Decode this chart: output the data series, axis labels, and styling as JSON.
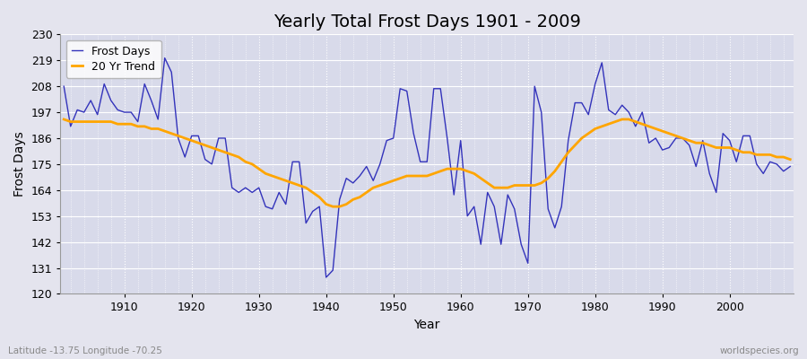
{
  "title": "Yearly Total Frost Days 1901 - 2009",
  "xlabel": "Year",
  "ylabel": "Frost Days",
  "subtitle": "Latitude -13.75 Longitude -70.25",
  "watermark": "worldspecies.org",
  "years": [
    1901,
    1902,
    1903,
    1904,
    1905,
    1906,
    1907,
    1908,
    1909,
    1910,
    1911,
    1912,
    1913,
    1914,
    1915,
    1916,
    1917,
    1918,
    1919,
    1920,
    1921,
    1922,
    1923,
    1924,
    1925,
    1926,
    1927,
    1928,
    1929,
    1930,
    1931,
    1932,
    1933,
    1934,
    1935,
    1936,
    1937,
    1938,
    1939,
    1940,
    1941,
    1942,
    1943,
    1944,
    1945,
    1946,
    1947,
    1948,
    1949,
    1950,
    1951,
    1952,
    1953,
    1954,
    1955,
    1956,
    1957,
    1958,
    1959,
    1960,
    1961,
    1962,
    1963,
    1964,
    1965,
    1966,
    1967,
    1968,
    1969,
    1970,
    1971,
    1972,
    1973,
    1974,
    1975,
    1976,
    1977,
    1978,
    1979,
    1980,
    1981,
    1982,
    1983,
    1984,
    1985,
    1986,
    1987,
    1988,
    1989,
    1990,
    1991,
    1992,
    1993,
    1994,
    1995,
    1996,
    1997,
    1998,
    1999,
    2000,
    2001,
    2002,
    2003,
    2004,
    2005,
    2006,
    2007,
    2008,
    2009
  ],
  "frost_days": [
    208,
    191,
    198,
    197,
    202,
    196,
    209,
    202,
    198,
    197,
    197,
    193,
    209,
    202,
    194,
    220,
    214,
    186,
    178,
    187,
    187,
    177,
    175,
    186,
    186,
    165,
    163,
    165,
    163,
    165,
    157,
    156,
    163,
    158,
    176,
    176,
    150,
    155,
    157,
    127,
    130,
    160,
    169,
    167,
    170,
    174,
    168,
    175,
    185,
    186,
    207,
    206,
    188,
    176,
    176,
    207,
    207,
    186,
    162,
    185,
    153,
    157,
    141,
    163,
    157,
    141,
    162,
    156,
    141,
    133,
    208,
    197,
    156,
    148,
    157,
    185,
    201,
    201,
    196,
    209,
    218,
    198,
    196,
    200,
    197,
    191,
    197,
    184,
    186,
    181,
    182,
    186,
    186,
    183,
    174,
    185,
    171,
    163,
    188,
    185,
    176,
    187,
    187,
    175,
    171,
    176,
    175,
    172,
    174
  ],
  "trend": [
    194,
    193,
    193,
    193,
    193,
    193,
    193,
    193,
    192,
    192,
    192,
    191,
    191,
    190,
    190,
    189,
    188,
    187,
    186,
    185,
    184,
    183,
    182,
    181,
    180,
    179,
    178,
    176,
    175,
    173,
    171,
    170,
    169,
    168,
    167,
    166,
    165,
    163,
    161,
    158,
    157,
    157,
    158,
    160,
    161,
    163,
    165,
    166,
    167,
    168,
    169,
    170,
    170,
    170,
    170,
    171,
    172,
    173,
    173,
    173,
    172,
    171,
    169,
    167,
    165,
    165,
    165,
    166,
    166,
    166,
    166,
    167,
    169,
    172,
    176,
    180,
    183,
    186,
    188,
    190,
    191,
    192,
    193,
    194,
    194,
    193,
    192,
    191,
    190,
    189,
    188,
    187,
    186,
    185,
    184,
    184,
    183,
    182,
    182,
    182,
    181,
    180,
    180,
    179,
    179,
    179,
    178,
    178,
    177
  ],
  "ylim": [
    120,
    230
  ],
  "yticks": [
    120,
    131,
    142,
    153,
    164,
    175,
    186,
    197,
    208,
    219,
    230
  ],
  "xlim_left": 1901,
  "xlim_right": 2009,
  "line_color": "#3333bb",
  "trend_color": "#FFA500",
  "bg_color": "#e4e4ee",
  "plot_bg": "#d8daea",
  "grid_color": "#ffffff",
  "title_fontsize": 14,
  "label_fontsize": 10,
  "tick_fontsize": 9,
  "legend_fontsize": 9
}
